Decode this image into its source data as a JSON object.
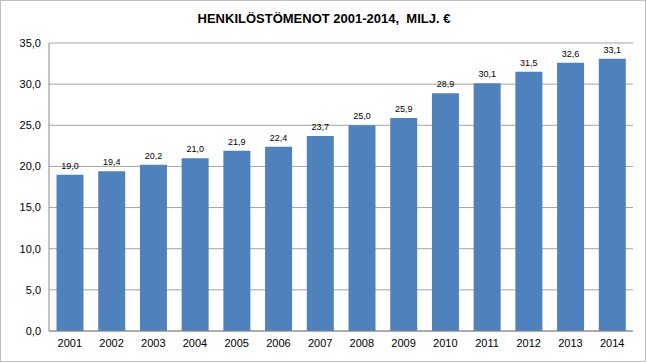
{
  "chart_data": {
    "type": "bar",
    "title": "HENKILÖSTÖMENOT 2001-2014,  MILJ. €",
    "categories": [
      "2001",
      "2002",
      "2003",
      "2004",
      "2005",
      "2006",
      "2007",
      "2008",
      "2009",
      "2010",
      "2011",
      "2012",
      "2013",
      "2014"
    ],
    "values": [
      19.0,
      19.4,
      20.2,
      21.0,
      21.9,
      22.4,
      23.7,
      25.0,
      25.9,
      28.9,
      30.1,
      31.5,
      32.6,
      33.1
    ],
    "value_labels": [
      "19,0",
      "19,4",
      "20,2",
      "21,0",
      "21,9",
      "22,4",
      "23,7",
      "25,0",
      "25,9",
      "28,9",
      "30,1",
      "31,5",
      "32,6",
      "33,1"
    ],
    "color": "#4f81bd",
    "ylim": [
      0,
      35
    ],
    "yticks": [
      {
        "value": 0,
        "label": "0,0"
      },
      {
        "value": 5,
        "label": "5,0"
      },
      {
        "value": 10,
        "label": "10,0"
      },
      {
        "value": 15,
        "label": "15,0"
      },
      {
        "value": 20,
        "label": "20,0"
      },
      {
        "value": 25,
        "label": "25,0"
      },
      {
        "value": 30,
        "label": "30,0"
      },
      {
        "value": 35,
        "label": "35,0"
      }
    ],
    "grid": true,
    "data_labels": true
  }
}
